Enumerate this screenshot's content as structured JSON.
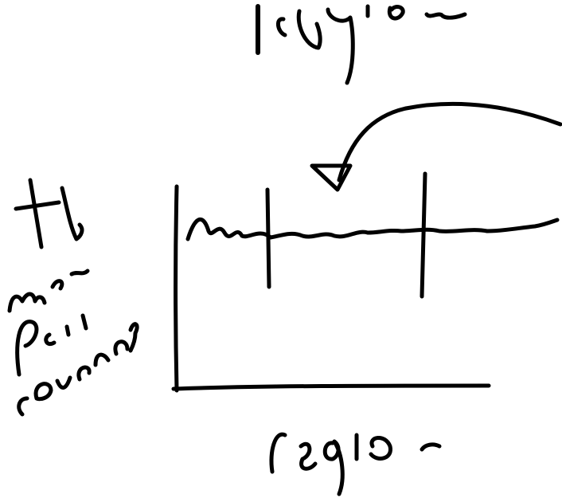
{
  "labels": {
    "top": "region",
    "bottom": "region",
    "left_line1": "mate",
    "left_line2": "pair",
    "left_line3": "coverage"
  },
  "colors": {
    "ink": "#000000",
    "background": "#ffffff"
  }
}
